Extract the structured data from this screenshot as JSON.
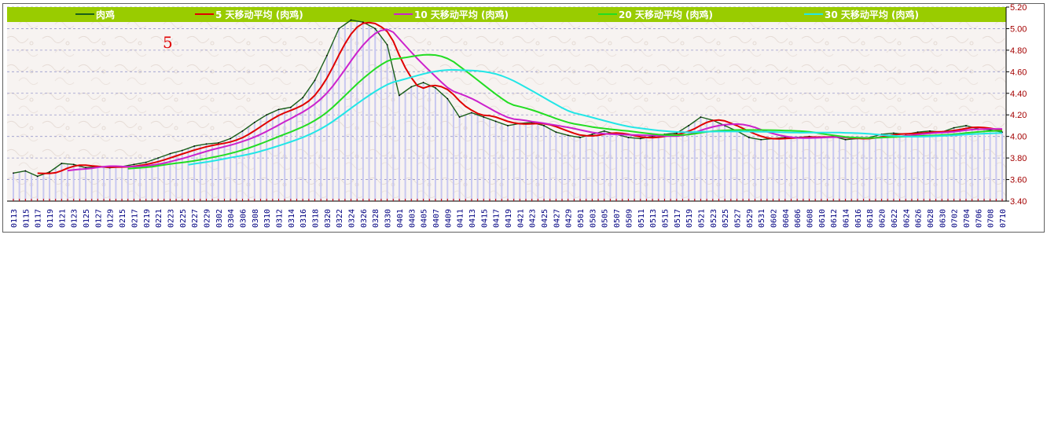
{
  "chart_data": {
    "type": "line",
    "annotation": "5",
    "legend": [
      {
        "label": "肉鸡",
        "color": "#1a5f1a"
      },
      {
        "label": "5 天移动平均 (肉鸡)",
        "color": "#e00000"
      },
      {
        "label": "10 天移动平均 (肉鸡)",
        "color": "#cc22cc"
      },
      {
        "label": "20 天移动平均 (肉鸡)",
        "color": "#22dd22"
      },
      {
        "label": "30 天移动平均 (肉鸡)",
        "color": "#22e6e6"
      }
    ],
    "legend_bg": "#99cc00",
    "bar_color": "#c8c8f0",
    "grid_color": "#9999cc",
    "ylim": [
      3.4,
      5.2
    ],
    "yticks": [
      "3.40",
      "3.60",
      "3.80",
      "4.00",
      "4.20",
      "4.40",
      "4.60",
      "4.80",
      "5.00",
      "5.20"
    ],
    "x_labels": [
      "0113",
      "0115",
      "0117",
      "0119",
      "0121",
      "0123",
      "0125",
      "0127",
      "0129",
      "0215",
      "0217",
      "0219",
      "0221",
      "0223",
      "0225",
      "0227",
      "0229",
      "0302",
      "0304",
      "0306",
      "0308",
      "0310",
      "0312",
      "0314",
      "0316",
      "0318",
      "0320",
      "0322",
      "0324",
      "0326",
      "0328",
      "0330",
      "0401",
      "0403",
      "0405",
      "0407",
      "0409",
      "0411",
      "0413",
      "0415",
      "0417",
      "0419",
      "0421",
      "0423",
      "0425",
      "0427",
      "0429",
      "0501",
      "0503",
      "0505",
      "0507",
      "0509",
      "0511",
      "0513",
      "0515",
      "0517",
      "0519",
      "0521",
      "0523",
      "0525",
      "0527",
      "0529",
      "0531",
      "0602",
      "0604",
      "0606",
      "0608",
      "0610",
      "0612",
      "0614",
      "0616",
      "0618",
      "0620",
      "0622",
      "0624",
      "0626",
      "0628",
      "0630",
      "0702",
      "0704",
      "0706",
      "0708",
      "0710"
    ],
    "points_per_label": 2,
    "price_keyframes": [
      [
        0,
        3.66
      ],
      [
        2,
        3.68
      ],
      [
        4,
        3.63
      ],
      [
        6,
        3.67
      ],
      [
        8,
        3.75
      ],
      [
        10,
        3.74
      ],
      [
        12,
        3.71
      ],
      [
        14,
        3.72
      ],
      [
        16,
        3.71
      ],
      [
        18,
        3.72
      ],
      [
        20,
        3.74
      ],
      [
        22,
        3.76
      ],
      [
        24,
        3.8
      ],
      [
        26,
        3.84
      ],
      [
        28,
        3.87
      ],
      [
        30,
        3.91
      ],
      [
        32,
        3.93
      ],
      [
        34,
        3.94
      ],
      [
        36,
        3.98
      ],
      [
        38,
        4.05
      ],
      [
        40,
        4.13
      ],
      [
        42,
        4.2
      ],
      [
        44,
        4.25
      ],
      [
        46,
        4.27
      ],
      [
        48,
        4.36
      ],
      [
        50,
        4.52
      ],
      [
        52,
        4.75
      ],
      [
        54,
        5.0
      ],
      [
        56,
        5.08
      ],
      [
        58,
        5.06
      ],
      [
        60,
        5.0
      ],
      [
        62,
        4.85
      ],
      [
        64,
        4.38
      ],
      [
        66,
        4.46
      ],
      [
        68,
        4.5
      ],
      [
        70,
        4.45
      ],
      [
        72,
        4.35
      ],
      [
        74,
        4.18
      ],
      [
        76,
        4.22
      ],
      [
        78,
        4.18
      ],
      [
        80,
        4.14
      ],
      [
        82,
        4.1
      ],
      [
        84,
        4.12
      ],
      [
        86,
        4.13
      ],
      [
        88,
        4.1
      ],
      [
        90,
        4.04
      ],
      [
        92,
        4.01
      ],
      [
        94,
        3.99
      ],
      [
        96,
        4.02
      ],
      [
        98,
        4.05
      ],
      [
        100,
        4.02
      ],
      [
        102,
        3.99
      ],
      [
        104,
        3.98
      ],
      [
        106,
        4.0
      ],
      [
        108,
        4.02
      ],
      [
        110,
        4.03
      ],
      [
        112,
        4.1
      ],
      [
        114,
        4.18
      ],
      [
        116,
        4.15
      ],
      [
        118,
        4.1
      ],
      [
        120,
        4.05
      ],
      [
        122,
        3.99
      ],
      [
        124,
        3.97
      ],
      [
        126,
        3.98
      ],
      [
        128,
        3.99
      ],
      [
        130,
        3.99
      ],
      [
        132,
        4.0
      ],
      [
        134,
        3.99
      ],
      [
        136,
        4.0
      ],
      [
        138,
        3.97
      ],
      [
        140,
        3.98
      ],
      [
        142,
        3.99
      ],
      [
        144,
        4.02
      ],
      [
        146,
        4.03
      ],
      [
        148,
        4.02
      ],
      [
        150,
        4.04
      ],
      [
        152,
        4.05
      ],
      [
        154,
        4.04
      ],
      [
        156,
        4.08
      ],
      [
        158,
        4.1
      ],
      [
        160,
        4.07
      ],
      [
        162,
        4.06
      ],
      [
        164,
        4.04
      ],
      [
        166,
        4.06
      ],
      [
        168,
        4.03
      ],
      [
        170,
        4.03
      ],
      [
        172,
        4.08
      ],
      [
        174,
        4.15
      ],
      [
        176,
        4.2
      ],
      [
        178,
        4.15
      ],
      [
        180,
        4.12
      ],
      [
        182,
        4.14
      ],
      [
        184,
        4.16
      ],
      [
        186,
        4.15
      ],
      [
        188,
        4.13
      ],
      [
        190,
        4.09
      ],
      [
        192,
        4.07
      ],
      [
        194,
        4.04
      ],
      [
        196,
        4.0
      ],
      [
        198,
        4.02
      ],
      [
        200,
        4.05
      ],
      [
        202,
        4.08
      ],
      [
        204,
        4.12
      ],
      [
        206,
        4.14
      ],
      [
        208,
        4.13
      ],
      [
        210,
        4.15
      ],
      [
        212,
        4.12
      ],
      [
        214,
        4.12
      ],
      [
        216,
        4.13
      ],
      [
        218,
        4.12
      ],
      [
        220,
        4.1
      ]
    ],
    "series": [
      {
        "name": "肉鸡",
        "window": 1,
        "color": "#1a5f1a",
        "width": 1.4
      },
      {
        "name": "5 天移动平均 (肉鸡)",
        "window": 5,
        "color": "#e00000",
        "width": 2
      },
      {
        "name": "10 天移动平均 (肉鸡)",
        "window": 10,
        "color": "#cc22cc",
        "width": 2
      },
      {
        "name": "20 天移动平均 (肉鸡)",
        "window": 20,
        "color": "#22dd22",
        "width": 2
      },
      {
        "name": "30 天移动平均 (肉鸡)",
        "window": 30,
        "color": "#22e6e6",
        "width": 2
      }
    ]
  }
}
